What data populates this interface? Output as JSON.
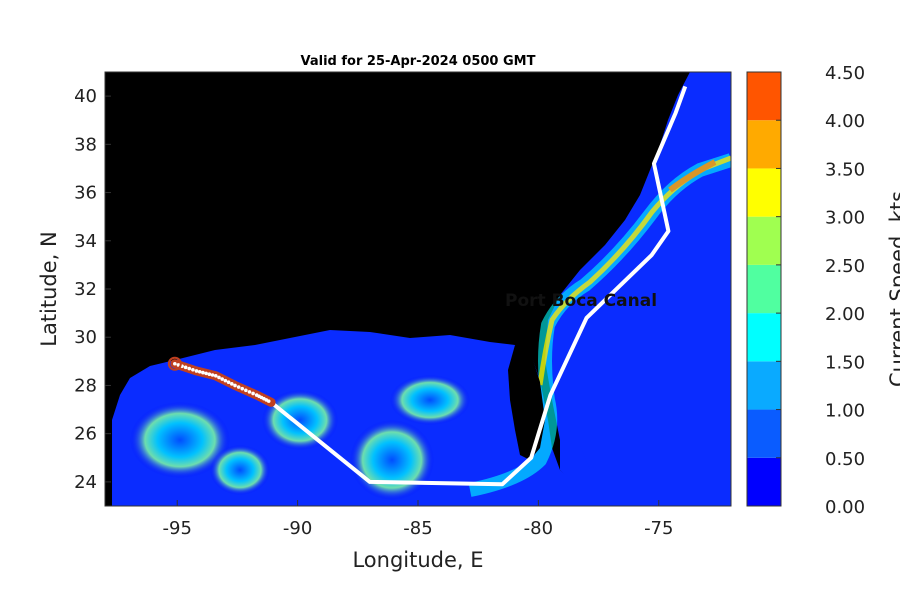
{
  "title": "Valid for 25-Apr-2024 0500 GMT",
  "xlabel": "Longitude, E",
  "ylabel": "Latitude, N",
  "colorbar_label": "Current Speed, kts",
  "overlay_text": "Port Boca Canal",
  "chart_data": {
    "type": "heatmap",
    "xlim": [
      -98,
      -72
    ],
    "ylim": [
      23,
      41
    ],
    "x_ticks": [
      -95,
      -90,
      -85,
      -80,
      -75
    ],
    "y_ticks": [
      24,
      26,
      28,
      30,
      32,
      34,
      36,
      38,
      40
    ],
    "x_tick_labels": [
      "-95",
      "-90",
      "-85",
      "-80",
      "-75"
    ],
    "y_tick_labels": [
      "24",
      "26",
      "28",
      "30",
      "32",
      "34",
      "36",
      "38",
      "40"
    ],
    "colorbar": {
      "levels": [
        0.0,
        0.5,
        1.0,
        1.5,
        2.0,
        2.5,
        3.0,
        3.5,
        4.0,
        4.5
      ],
      "tick_labels": [
        "0.00",
        "0.50",
        "1.00",
        "1.50",
        "2.00",
        "2.50",
        "3.00",
        "3.50",
        "4.00",
        "4.50"
      ],
      "colors": [
        "#0000ff",
        "#0a5cff",
        "#0aaaff",
        "#00ffff",
        "#50ffa0",
        "#a0ff50",
        "#ffff00",
        "#ffaa00",
        "#ff5500"
      ]
    },
    "land_color": "#000000",
    "route": {
      "color": "#ffffff",
      "points": [
        [
          -91.1,
          27.3
        ],
        [
          -87.0,
          24.0
        ],
        [
          -81.5,
          23.9
        ],
        [
          -80.3,
          25.0
        ],
        [
          -79.5,
          27.6
        ],
        [
          -78.0,
          30.8
        ],
        [
          -75.3,
          33.4
        ],
        [
          -74.6,
          34.4
        ],
        [
          -75.2,
          37.2
        ],
        [
          -74.3,
          39.3
        ],
        [
          -73.9,
          40.4
        ]
      ]
    },
    "track": {
      "color": "#c04020",
      "marker_color": "#ffffff",
      "points": [
        [
          -95.1,
          28.9
        ],
        [
          -94.2,
          28.6
        ],
        [
          -93.4,
          28.4
        ],
        [
          -92.6,
          28.0
        ],
        [
          -91.7,
          27.6
        ],
        [
          -91.1,
          27.3
        ]
      ]
    }
  }
}
